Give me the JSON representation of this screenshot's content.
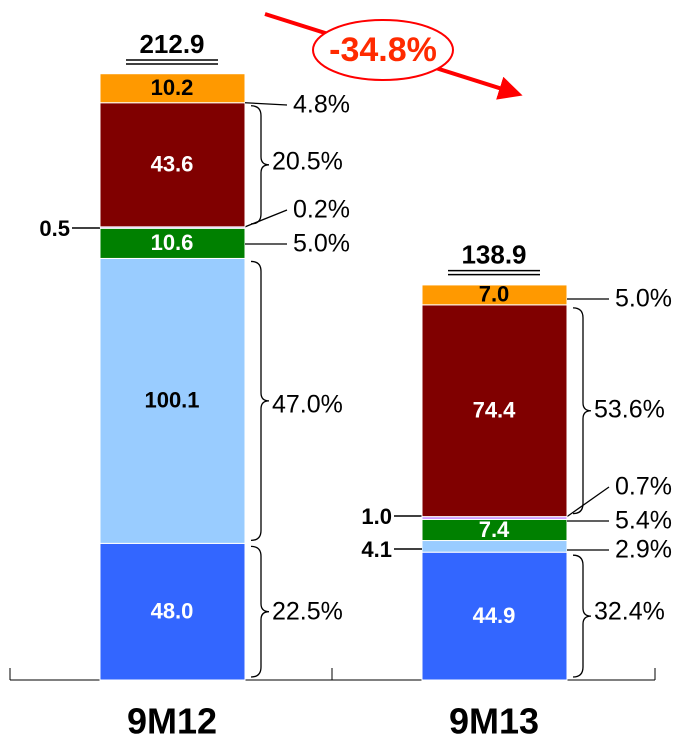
{
  "chart_data": {
    "type": "stacked_bar",
    "categories": [
      "9M12",
      "9M13"
    ],
    "totals": [
      212.9,
      138.9
    ],
    "change": "-34.8%",
    "series": [
      {
        "color": "#3366ff",
        "values": [
          48,
          44.9
        ],
        "value_labels": [
          "48.0",
          "44.9"
        ],
        "shares": [
          22.5,
          32.4
        ],
        "share_labels": [
          "22.5%",
          "32.4%"
        ]
      },
      {
        "color": "#99ccff",
        "values": [
          100.1,
          4.1
        ],
        "value_labels": [
          "100.1",
          "4.1"
        ],
        "shares": [
          47,
          2.9
        ],
        "share_labels": [
          "47.0%",
          "2.9%"
        ]
      },
      {
        "color": "#008000",
        "values": [
          10.6,
          7.4
        ],
        "value_labels": [
          "10.6",
          "7.4"
        ],
        "shares": [
          5,
          5.4
        ],
        "share_labels": [
          "5.0%",
          "5.4%"
        ]
      },
      {
        "color": "#cc99ff",
        "values": [
          0.5,
          1
        ],
        "value_labels": [
          "0.5",
          "1.0"
        ],
        "shares": [
          0.2,
          0.7
        ],
        "share_labels": [
          "0.2%",
          "0.7%"
        ]
      },
      {
        "color": "#800000",
        "values": [
          43.6,
          74.4
        ],
        "value_labels": [
          "43.6",
          "74.4"
        ],
        "shares": [
          20.5,
          53.6
        ],
        "share_labels": [
          "20.5%",
          "53.6%"
        ]
      },
      {
        "color": "#ff9900",
        "values": [
          10.2,
          7
        ],
        "value_labels": [
          "10.2",
          "7.0"
        ],
        "shares": [
          4.8,
          5
        ],
        "share_labels": [
          "4.8%",
          "5.0%"
        ]
      }
    ]
  }
}
